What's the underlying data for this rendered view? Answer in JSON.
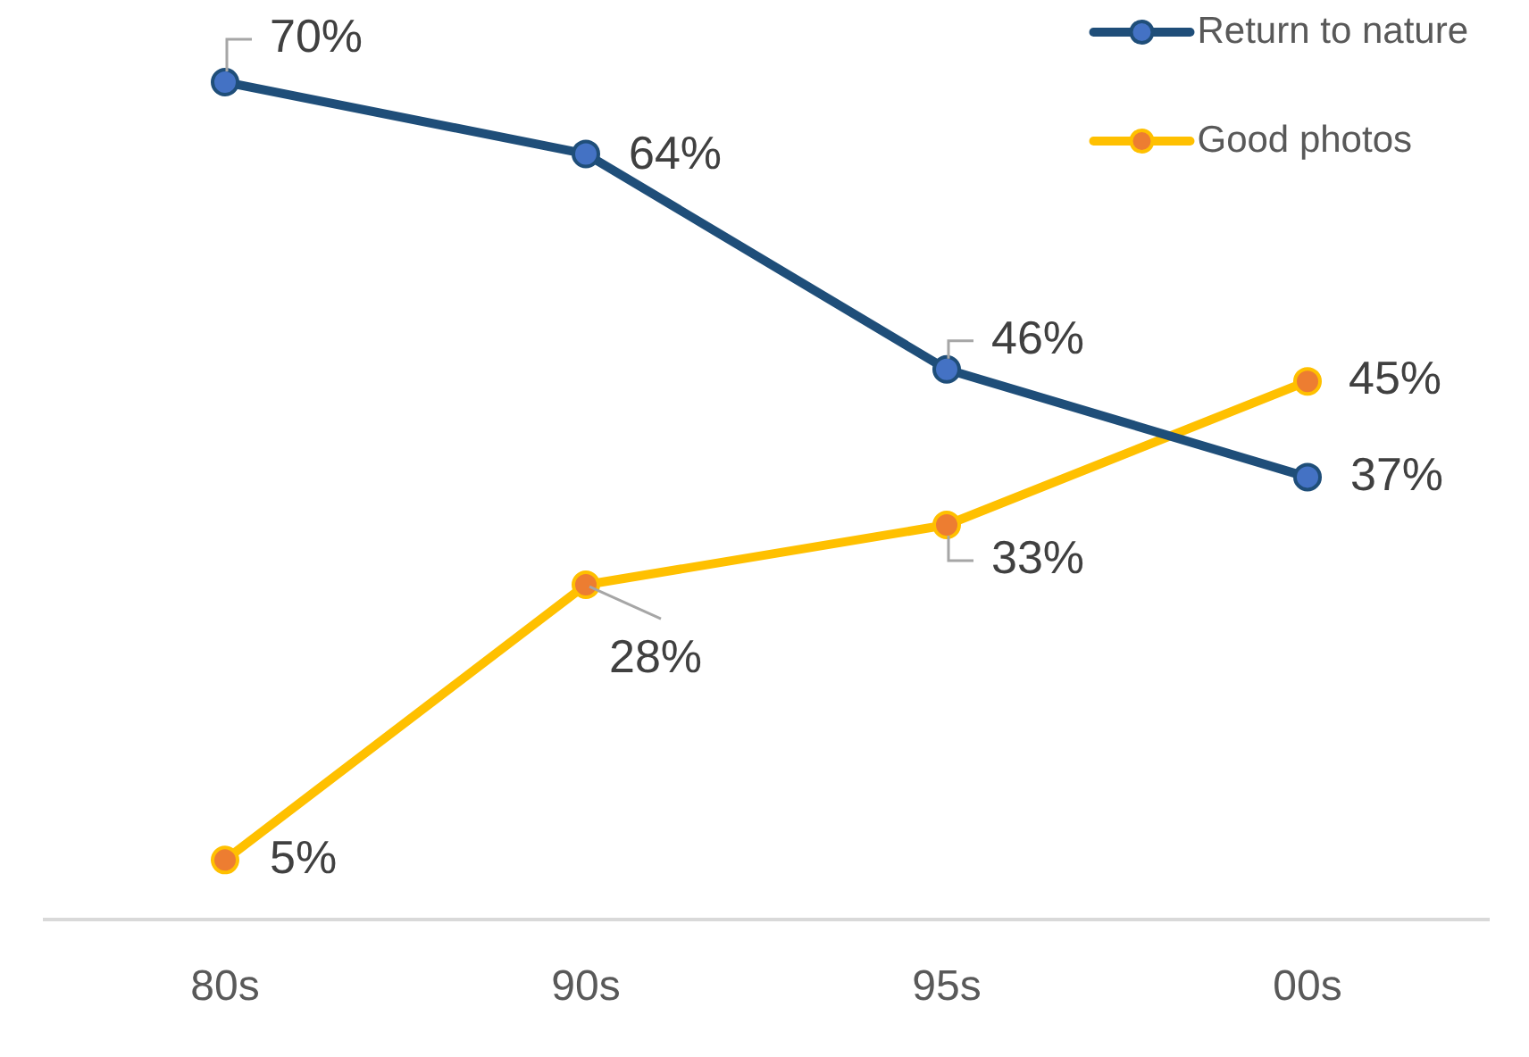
{
  "chart_data": {
    "type": "line",
    "categories": [
      "80s",
      "90s",
      "95s",
      "00s"
    ],
    "series": [
      {
        "name": "Return to nature",
        "color": "#1f4e79",
        "colors": [
          "#4472c4",
          "#4472c4",
          "#4472c4",
          "#4472c4"
        ],
        "values": [
          70,
          64,
          46,
          37
        ],
        "value_labels": [
          "70%",
          "64%",
          "46%",
          "37%"
        ]
      },
      {
        "name": "Good photos",
        "color": "#ffc000",
        "colors": [
          "#ed7d31",
          "#ed7d31",
          "#ed7d31",
          "#ed7d31"
        ],
        "values": [
          5,
          28,
          33,
          45
        ],
        "value_labels": [
          "5%",
          "28%",
          "33%",
          "45%"
        ]
      }
    ],
    "tick_labels": "x",
    "marker": "circle",
    "line_style": "solid",
    "legend": "top right"
  }
}
